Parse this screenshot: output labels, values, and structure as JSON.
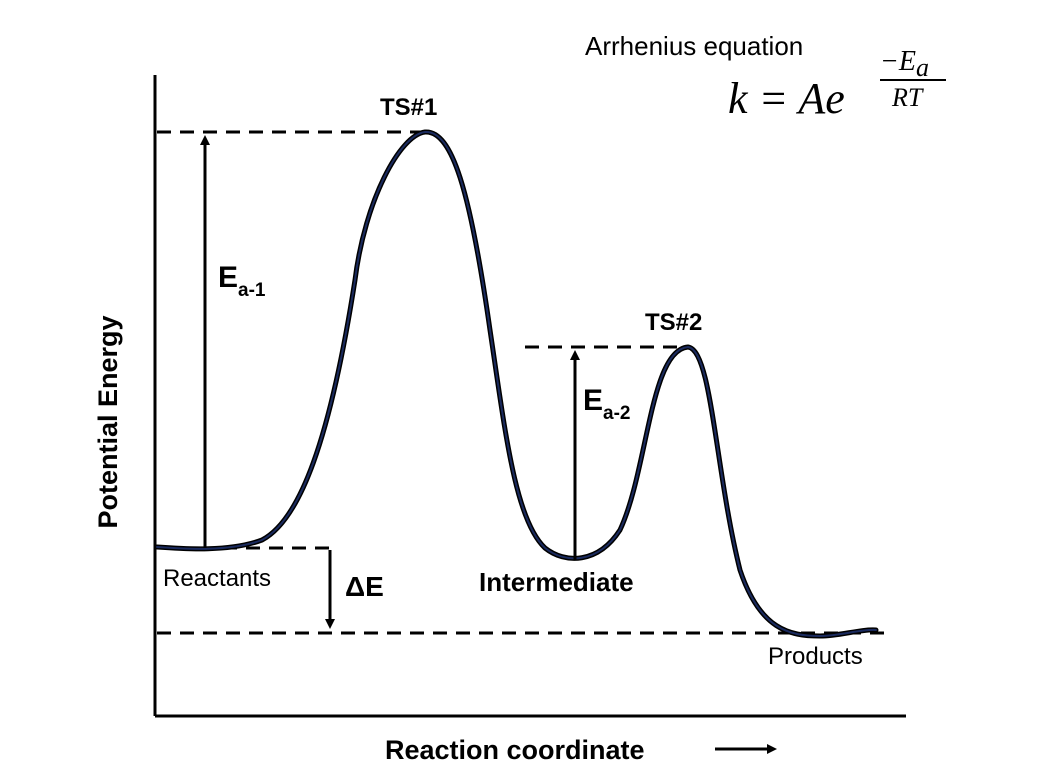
{
  "equation": {
    "title": "Arrhenius equation",
    "lhs": "k = Ae",
    "exp_numerator": "−E",
    "exp_numerator_sub": "a",
    "exp_denominator": "RT"
  },
  "axes": {
    "ylabel": "Potential Energy",
    "xlabel": "Reaction coordinate"
  },
  "labels": {
    "ts1": "TS#1",
    "ts2": "TS#2",
    "reactants": "Reactants",
    "intermediate": "Intermediate",
    "products": "Products",
    "ea1_main": "E",
    "ea1_sub": "a-1",
    "ea2_main": "E",
    "ea2_sub": "a-2",
    "delta_e": "ΔE"
  },
  "colors": {
    "curve": "#1a2a5e",
    "ink": "#000000"
  }
}
